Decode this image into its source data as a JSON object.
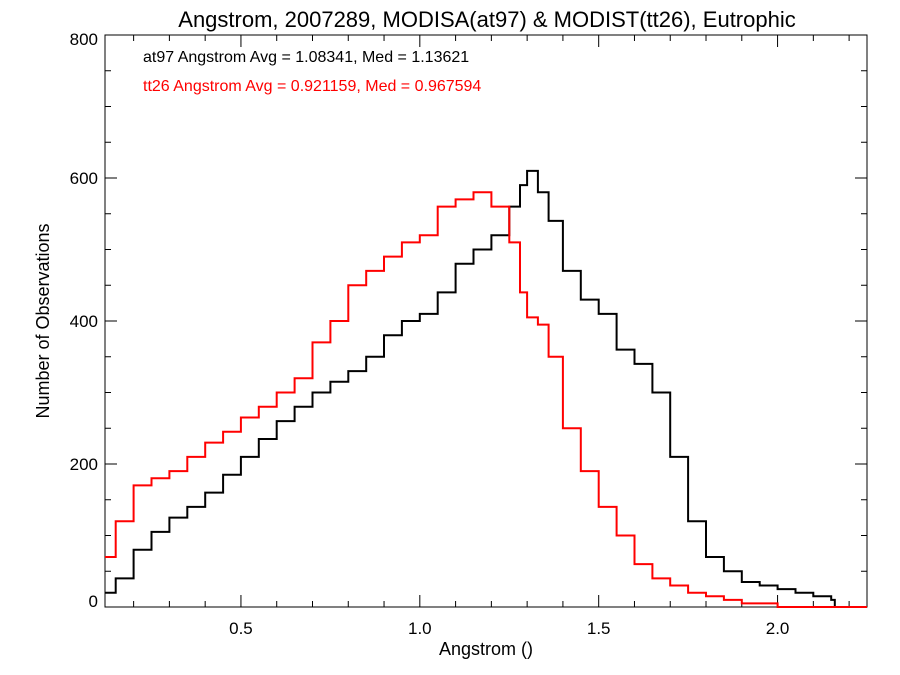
{
  "chart_data": {
    "type": "line",
    "title": "Angstrom, 2007289, MODISA(at97) & MODIST(tt26), Eutrophic",
    "xlabel": "Angstrom ()",
    "ylabel": "Number of Observations",
    "xlim": [
      0.12,
      2.25
    ],
    "ylim": [
      0,
      800
    ],
    "xticks": [
      0.5,
      1.0,
      1.5,
      2.0
    ],
    "xtick_labels": [
      "0.5",
      "1.0",
      "1.5",
      "2.0"
    ],
    "yticks": [
      0,
      200,
      400,
      600,
      800
    ],
    "ytick_labels": [
      "0",
      "200",
      "400",
      "600",
      "800"
    ],
    "grid": false,
    "annotations": [
      {
        "text": "at97 Angstrom Avg = 1.08341, Med = 1.13621",
        "color": "#000000"
      },
      {
        "text": "tt26 Angstrom Avg = 0.921159, Med = 0.967594",
        "color": "#ff0000"
      }
    ],
    "series": [
      {
        "color": "#000000",
        "x": [
          0.12,
          0.15,
          0.2,
          0.25,
          0.3,
          0.35,
          0.4,
          0.45,
          0.5,
          0.55,
          0.6,
          0.65,
          0.7,
          0.75,
          0.8,
          0.85,
          0.9,
          0.95,
          1.0,
          1.05,
          1.1,
          1.15,
          1.2,
          1.25,
          1.28,
          1.3,
          1.33,
          1.36,
          1.4,
          1.45,
          1.5,
          1.55,
          1.6,
          1.65,
          1.7,
          1.75,
          1.8,
          1.85,
          1.9,
          1.95,
          2.0,
          2.05,
          2.1,
          2.15,
          2.16,
          2.25
        ],
        "y": [
          20,
          40,
          80,
          105,
          125,
          140,
          160,
          185,
          210,
          235,
          260,
          280,
          300,
          315,
          330,
          350,
          380,
          400,
          410,
          440,
          480,
          500,
          520,
          560,
          590,
          610,
          580,
          540,
          470,
          430,
          410,
          360,
          340,
          300,
          210,
          120,
          70,
          50,
          35,
          30,
          25,
          20,
          15,
          10,
          0,
          0
        ]
      },
      {
        "color": "#ff0000",
        "x": [
          0.12,
          0.15,
          0.2,
          0.25,
          0.3,
          0.35,
          0.4,
          0.45,
          0.5,
          0.55,
          0.6,
          0.65,
          0.7,
          0.75,
          0.8,
          0.85,
          0.9,
          0.95,
          1.0,
          1.05,
          1.1,
          1.15,
          1.2,
          1.25,
          1.28,
          1.3,
          1.33,
          1.36,
          1.4,
          1.45,
          1.5,
          1.55,
          1.6,
          1.65,
          1.7,
          1.75,
          1.8,
          1.85,
          1.9,
          1.95,
          2.0,
          2.05,
          2.1,
          2.15,
          2.16,
          2.25
        ],
        "y": [
          70,
          120,
          170,
          180,
          190,
          210,
          230,
          245,
          265,
          280,
          300,
          320,
          370,
          400,
          450,
          470,
          490,
          510,
          520,
          560,
          570,
          580,
          560,
          510,
          440,
          405,
          395,
          350,
          250,
          190,
          140,
          100,
          60,
          40,
          30,
          20,
          15,
          10,
          5,
          5,
          0,
          0,
          0,
          0,
          0,
          0
        ]
      }
    ]
  }
}
